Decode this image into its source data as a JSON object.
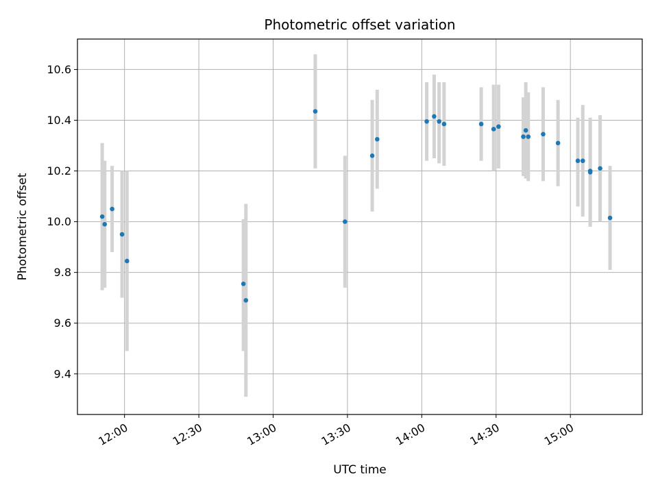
{
  "chart_data": {
    "type": "scatter",
    "title": "Photometric offset variation",
    "xlabel": "UTC time",
    "ylabel": "Photometric offset",
    "xlim": [
      "11:41",
      "15:29"
    ],
    "ylim": [
      9.24,
      10.72
    ],
    "grid": true,
    "x_ticks": [
      "12:00",
      "12:30",
      "13:00",
      "13:30",
      "14:00",
      "14:30",
      "15:00"
    ],
    "y_ticks": [
      9.4,
      9.6,
      9.8,
      10.0,
      10.2,
      10.4,
      10.6
    ],
    "y_tick_labels": [
      "9.4",
      "9.6",
      "9.8",
      "10.0",
      "10.2",
      "10.4",
      "10.6"
    ],
    "colors": {
      "point": "#1f77b4",
      "errorbar": "#d3d3d3",
      "grid": "#b0b0b0"
    },
    "series": [
      {
        "points": [
          {
            "x": "11:51",
            "y": 10.02,
            "low": 9.73,
            "high": 10.31
          },
          {
            "x": "11:52",
            "y": 9.99,
            "low": 9.74,
            "high": 10.24
          },
          {
            "x": "11:55",
            "y": 10.05,
            "low": 9.88,
            "high": 10.22
          },
          {
            "x": "11:59",
            "y": 9.95,
            "low": 9.7,
            "high": 10.2
          },
          {
            "x": "12:01",
            "y": 9.845,
            "low": 9.49,
            "high": 10.2
          },
          {
            "x": "12:48",
            "y": 9.755,
            "low": 9.49,
            "high": 10.01
          },
          {
            "x": "12:49",
            "y": 9.69,
            "low": 9.31,
            "high": 10.07
          },
          {
            "x": "13:17",
            "y": 10.435,
            "low": 10.21,
            "high": 10.66
          },
          {
            "x": "13:29",
            "y": 10.0,
            "low": 9.74,
            "high": 10.26
          },
          {
            "x": "13:40",
            "y": 10.26,
            "low": 10.04,
            "high": 10.48
          },
          {
            "x": "13:42",
            "y": 10.325,
            "low": 10.13,
            "high": 10.52
          },
          {
            "x": "14:02",
            "y": 10.395,
            "low": 10.24,
            "high": 10.55
          },
          {
            "x": "14:05",
            "y": 10.415,
            "low": 10.25,
            "high": 10.58
          },
          {
            "x": "14:07",
            "y": 10.395,
            "low": 10.23,
            "high": 10.55
          },
          {
            "x": "14:09",
            "y": 10.385,
            "low": 10.22,
            "high": 10.55
          },
          {
            "x": "14:24",
            "y": 10.385,
            "low": 10.24,
            "high": 10.53
          },
          {
            "x": "14:29",
            "y": 10.365,
            "low": 10.2,
            "high": 10.54
          },
          {
            "x": "14:31",
            "y": 10.375,
            "low": 10.21,
            "high": 10.54
          },
          {
            "x": "14:41",
            "y": 10.335,
            "low": 10.18,
            "high": 10.49
          },
          {
            "x": "14:42",
            "y": 10.36,
            "low": 10.17,
            "high": 10.55
          },
          {
            "x": "14:43",
            "y": 10.335,
            "low": 10.16,
            "high": 10.51
          },
          {
            "x": "14:49",
            "y": 10.345,
            "low": 10.16,
            "high": 10.53
          },
          {
            "x": "14:55",
            "y": 10.31,
            "low": 10.14,
            "high": 10.48
          },
          {
            "x": "15:03",
            "y": 10.24,
            "low": 10.06,
            "high": 10.41
          },
          {
            "x": "15:05",
            "y": 10.24,
            "low": 10.02,
            "high": 10.46
          },
          {
            "x": "15:08",
            "y": 10.2,
            "low": 9.98,
            "high": 10.4
          },
          {
            "x": "15:08",
            "y": 10.195,
            "low": 9.99,
            "high": 10.41
          },
          {
            "x": "15:12",
            "y": 10.21,
            "low": 10.0,
            "high": 10.42
          },
          {
            "x": "15:16",
            "y": 10.015,
            "low": 9.81,
            "high": 10.22
          }
        ]
      }
    ]
  }
}
